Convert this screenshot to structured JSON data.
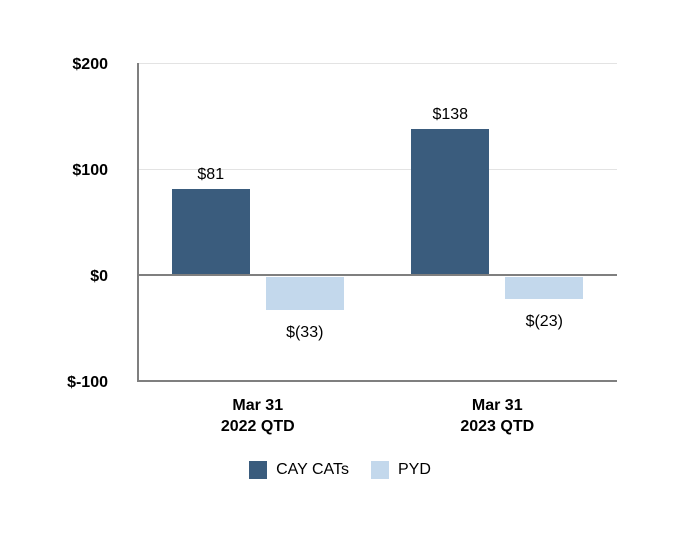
{
  "chart_data": {
    "type": "bar",
    "title": "",
    "categories": [
      {
        "lines": [
          "Mar 31",
          "2022 QTD"
        ]
      },
      {
        "lines": [
          "Mar 31",
          "2023 QTD"
        ]
      }
    ],
    "series": [
      {
        "name": "CAY CATs",
        "color": "#3a5c7d",
        "values": [
          81,
          138
        ],
        "labels": [
          "$81",
          "$138"
        ]
      },
      {
        "name": "PYD",
        "color": "#c3d8ec",
        "values": [
          -33,
          -23
        ],
        "labels": [
          "$(33)",
          "$(23)"
        ]
      }
    ],
    "y_axis": {
      "ticks": [
        {
          "label": "$200",
          "value": 200
        },
        {
          "label": "$100",
          "value": 100
        },
        {
          "label": "$0",
          "value": 0
        },
        {
          "label": "$-100",
          "value": -100
        }
      ],
      "ylim": [
        -100,
        200
      ]
    },
    "grid": true,
    "legend_position": "bottom",
    "colors": {
      "axis_line": "#7f7f7f",
      "gridline_minor": "#e3e3e3",
      "label_text": "#000000",
      "background": "#ffffff"
    }
  }
}
